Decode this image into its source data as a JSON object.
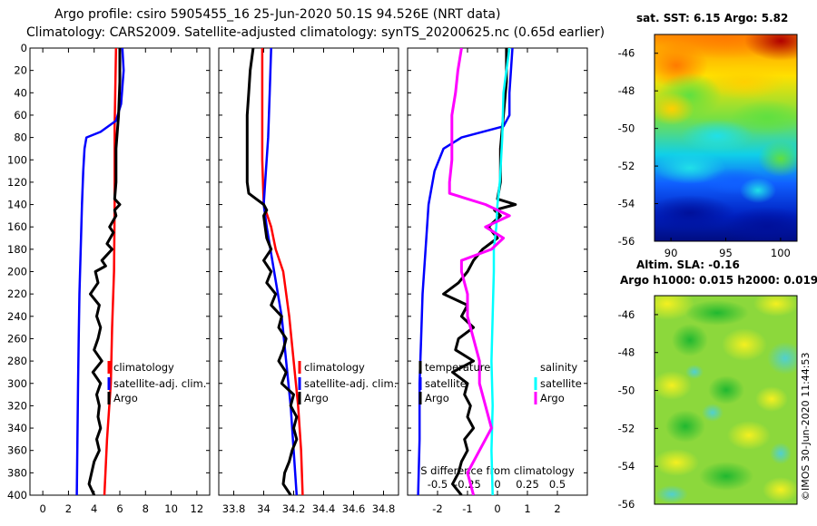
{
  "titles": {
    "line1": "Argo profile: csiro 5905455_16 25-Jun-2020 50.1S 94.526E (NRT data)",
    "line2": "Climatology: CARS2009. Satellite-adjusted climatology: synTS_20200625.nc (0.65d earlier)"
  },
  "colors": {
    "climatology": "#ff0000",
    "satellite": "#0000ff",
    "argo": "#000000",
    "salinity_sat": "#00ffff",
    "salinity_argo": "#ff00ff"
  },
  "chart_data": [
    {
      "name": "temperature-profile",
      "type": "line",
      "xlim": [
        -1,
        13
      ],
      "ylim": [
        400,
        0
      ],
      "xticks": [
        "0",
        "2",
        "4",
        "6",
        "8",
        "10",
        "12"
      ],
      "xtick_values": [
        0,
        2,
        4,
        6,
        8,
        10,
        12
      ],
      "yticks": [
        "0",
        "20",
        "40",
        "60",
        "80",
        "100",
        "120",
        "140",
        "160",
        "180",
        "200",
        "220",
        "240",
        "260",
        "280",
        "300",
        "320",
        "340",
        "360",
        "380",
        "400"
      ],
      "ytick_values": [
        0,
        20,
        40,
        60,
        80,
        100,
        120,
        140,
        160,
        180,
        200,
        220,
        240,
        260,
        280,
        300,
        320,
        340,
        360,
        380,
        400
      ],
      "legend": [
        "climatology",
        "satellite-adj. clim.",
        "Argo"
      ],
      "series": [
        {
          "name": "climatology",
          "color": "#ff0000",
          "depth": [
            0,
            70,
            90,
            140,
            200,
            250,
            300,
            350,
            400
          ],
          "values": [
            5.7,
            5.6,
            5.6,
            5.6,
            5.55,
            5.4,
            5.3,
            5.0,
            4.8
          ]
        },
        {
          "name": "satellite-adj. clim.",
          "color": "#0000ff",
          "depth": [
            0,
            20,
            50,
            65,
            75,
            80,
            90,
            110,
            140,
            180,
            220,
            260,
            300,
            350,
            400
          ],
          "values": [
            6.2,
            6.3,
            6.1,
            5.7,
            4.5,
            3.4,
            3.25,
            3.15,
            3.05,
            2.95,
            2.85,
            2.8,
            2.75,
            2.7,
            2.65
          ]
        },
        {
          "name": "Argo",
          "color": "#000000",
          "depth": [
            0,
            30,
            60,
            90,
            120,
            135,
            140,
            145,
            150,
            160,
            165,
            175,
            180,
            190,
            195,
            200,
            210,
            220,
            230,
            240,
            250,
            260,
            270,
            280,
            290,
            300,
            310,
            320,
            330,
            340,
            350,
            360,
            370,
            380,
            390,
            400
          ],
          "values": [
            6.0,
            6.0,
            5.9,
            5.7,
            5.7,
            5.6,
            6.0,
            5.6,
            5.7,
            5.2,
            5.5,
            5.0,
            5.4,
            4.6,
            4.9,
            4.1,
            4.3,
            3.7,
            4.4,
            4.2,
            4.5,
            4.3,
            4.0,
            4.6,
            3.9,
            4.5,
            4.2,
            4.4,
            4.3,
            4.5,
            4.2,
            4.4,
            4.0,
            3.8,
            3.6,
            4.0
          ]
        }
      ]
    },
    {
      "name": "salinity-profile",
      "type": "line",
      "xlim": [
        33.7,
        34.9
      ],
      "ylim": [
        400,
        0
      ],
      "xticks": [
        "33.8",
        "34",
        "34.2",
        "34.4",
        "34.6",
        "34.8"
      ],
      "xtick_values": [
        33.8,
        34.0,
        34.2,
        34.4,
        34.6,
        34.8
      ],
      "legend": [
        "climatology",
        "satellite-adj. clim.",
        "Argo"
      ],
      "series": [
        {
          "name": "climatology",
          "color": "#ff0000",
          "depth": [
            0,
            60,
            100,
            140,
            160,
            180,
            200,
            240,
            280,
            320,
            360,
            400
          ],
          "values": [
            33.99,
            33.99,
            33.99,
            34.0,
            34.05,
            34.08,
            34.13,
            34.17,
            34.2,
            34.23,
            34.25,
            34.26
          ]
        },
        {
          "name": "satellite-adj. clim.",
          "color": "#0000ff",
          "depth": [
            0,
            40,
            80,
            120,
            140,
            160,
            200,
            240,
            280,
            320,
            360,
            400
          ],
          "values": [
            34.05,
            34.04,
            34.03,
            34.01,
            34.0,
            34.02,
            34.07,
            34.12,
            34.15,
            34.18,
            34.2,
            34.22
          ]
        },
        {
          "name": "Argo",
          "color": "#000000",
          "depth": [
            0,
            20,
            40,
            60,
            80,
            100,
            120,
            130,
            135,
            140,
            145,
            150,
            160,
            170,
            180,
            190,
            200,
            210,
            220,
            230,
            240,
            250,
            260,
            270,
            280,
            290,
            300,
            310,
            320,
            330,
            340,
            350,
            360,
            370,
            380,
            390,
            400
          ],
          "values": [
            33.93,
            33.91,
            33.9,
            33.89,
            33.89,
            33.89,
            33.89,
            33.9,
            33.95,
            34.0,
            34.02,
            34.0,
            34.01,
            34.02,
            34.05,
            34.0,
            34.05,
            34.02,
            34.08,
            34.05,
            34.12,
            34.1,
            34.15,
            34.13,
            34.1,
            34.15,
            34.12,
            34.2,
            34.18,
            34.22,
            34.2,
            34.22,
            34.19,
            34.17,
            34.14,
            34.13,
            34.18
          ]
        }
      ]
    },
    {
      "name": "difference-profile",
      "type": "line",
      "xlim": [
        -3,
        3
      ],
      "ylim": [
        400,
        0
      ],
      "xticks": [
        "-2",
        "-1",
        "0",
        "1",
        "2"
      ],
      "xtick_values": [
        -2,
        -1,
        0,
        1,
        2
      ],
      "secondary_xticks": [
        "-0.5",
        "-0.25",
        "0",
        "0.25",
        "0.5"
      ],
      "secondary_xlabel": "S difference from climatology",
      "legend_left": [
        "temperature",
        "satellite",
        "Argo"
      ],
      "legend_right": [
        "salinity",
        "satellite",
        "Argo"
      ],
      "series": [
        {
          "name": "temperature satellite",
          "color": "#0000ff",
          "depth": [
            0,
            40,
            60,
            70,
            75,
            80,
            90,
            110,
            140,
            180,
            220,
            260,
            300,
            350,
            400
          ],
          "values": [
            0.5,
            0.4,
            0.4,
            0.2,
            -0.5,
            -1.2,
            -1.8,
            -2.1,
            -2.3,
            -2.4,
            -2.5,
            -2.55,
            -2.6,
            -2.6,
            -2.65
          ]
        },
        {
          "name": "temperature Argo",
          "color": "#000000",
          "depth": [
            0,
            30,
            60,
            90,
            120,
            135,
            140,
            145,
            150,
            160,
            170,
            180,
            190,
            200,
            210,
            220,
            230,
            240,
            250,
            260,
            270,
            280,
            290,
            300,
            310,
            320,
            330,
            340,
            350,
            360,
            370,
            380,
            390,
            400
          ],
          "values": [
            0.3,
            0.3,
            0.2,
            0.1,
            0.1,
            0.0,
            0.6,
            -0.1,
            0.1,
            -0.3,
            0.0,
            -0.5,
            -0.8,
            -1.0,
            -1.3,
            -1.8,
            -1.0,
            -1.2,
            -0.8,
            -1.3,
            -1.4,
            -0.8,
            -1.5,
            -1.0,
            -1.1,
            -0.9,
            -1.0,
            -0.8,
            -1.1,
            -1.0,
            -1.2,
            -1.3,
            -1.5,
            -1.2
          ]
        },
        {
          "name": "salinity satellite",
          "color": "#00ffff",
          "depth": [
            0,
            40,
            80,
            120,
            140,
            160,
            180,
            200,
            240,
            280,
            320,
            360,
            400
          ],
          "values": [
            0.1,
            0.05,
            0.04,
            0.02,
            0.0,
            -0.01,
            -0.03,
            -0.03,
            -0.04,
            -0.05,
            -0.04,
            -0.05,
            -0.04
          ]
        },
        {
          "name": "salinity Argo",
          "color": "#ff00ff",
          "depth": [
            0,
            20,
            40,
            60,
            80,
            100,
            120,
            130,
            140,
            150,
            160,
            170,
            180,
            190,
            200,
            220,
            240,
            260,
            280,
            300,
            320,
            340,
            360,
            380,
            400
          ],
          "values": [
            -0.3,
            -0.33,
            -0.35,
            -0.38,
            -0.38,
            -0.38,
            -0.4,
            -0.4,
            -0.1,
            0.1,
            -0.1,
            0.05,
            -0.05,
            -0.3,
            -0.3,
            -0.25,
            -0.25,
            -0.2,
            -0.15,
            -0.15,
            -0.1,
            -0.05,
            -0.15,
            -0.25,
            -0.2
          ]
        }
      ]
    },
    {
      "name": "sst-map",
      "type": "heatmap",
      "title": "sat. SST: 6.15 Argo: 5.82",
      "xticks": [
        "90",
        "95",
        "100"
      ],
      "xtick_values": [
        90,
        95,
        100
      ],
      "yticks": [
        "-46",
        "-48",
        "-50",
        "-52",
        "-54",
        "-56"
      ],
      "ytick_values": [
        -46,
        -48,
        -50,
        -52,
        -54,
        -56
      ]
    },
    {
      "name": "sla-map",
      "type": "heatmap",
      "title": "Altim. SLA: -0.16",
      "subtitle": "Argo h1000: 0.015 h2000: 0.019",
      "yticks": [
        "-46",
        "-48",
        "-50",
        "-52",
        "-54",
        "-56"
      ],
      "ytick_values": [
        -46,
        -48,
        -50,
        -52,
        -54,
        -56
      ]
    }
  ],
  "legend_marker": "Argo",
  "footer": "©IMOS 30-Jun-2020 11:44:53"
}
